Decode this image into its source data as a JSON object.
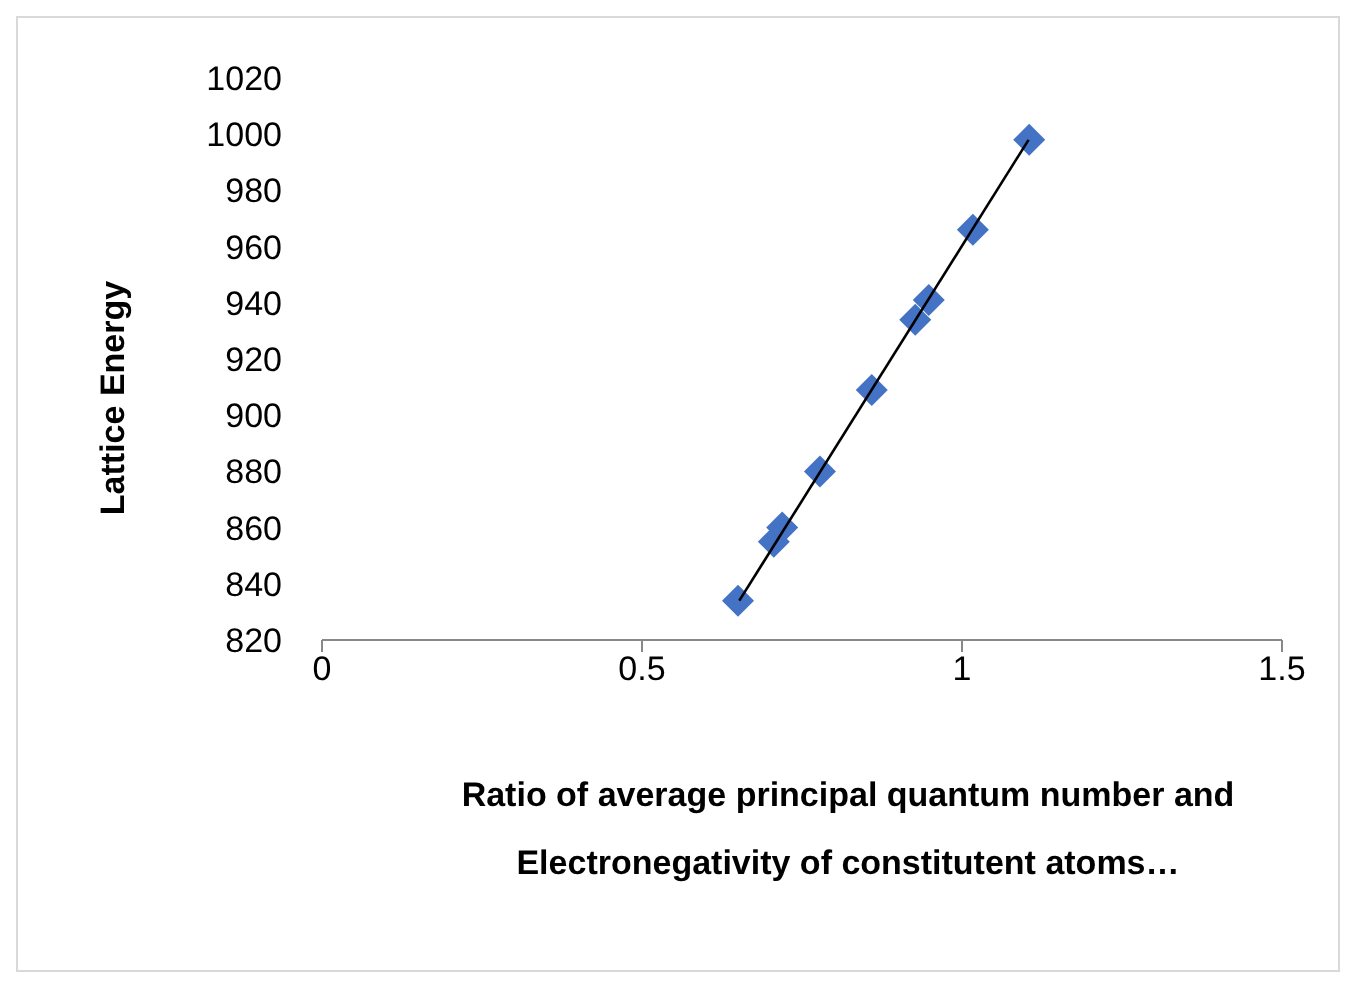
{
  "chart_data": {
    "type": "scatter",
    "xlabel": "Ratio of average principal quantum number and Electronegativity of constitutent atoms…",
    "ylabel": "Lattice Energy",
    "xlim": [
      0,
      1.5
    ],
    "xticks": [
      0,
      0.5,
      1,
      1.5
    ],
    "ylim": [
      820,
      1020
    ],
    "yticks": [
      820,
      840,
      860,
      880,
      900,
      920,
      940,
      960,
      980,
      1000,
      1020
    ],
    "marker": "diamond",
    "series": [
      {
        "color": "#4472c4",
        "x": [
          0.65,
          0.706,
          0.719,
          0.778,
          0.859,
          0.927,
          0.948,
          1.017,
          1.105
        ],
        "values": [
          834,
          855,
          860,
          880,
          909,
          934,
          941,
          966,
          998
        ]
      },
      {
        "type": "line",
        "color": "#000000",
        "x": [
          0.652,
          1.104
        ],
        "values": [
          834,
          998
        ],
        "marker": "none",
        "line_style": "solid"
      }
    ]
  }
}
